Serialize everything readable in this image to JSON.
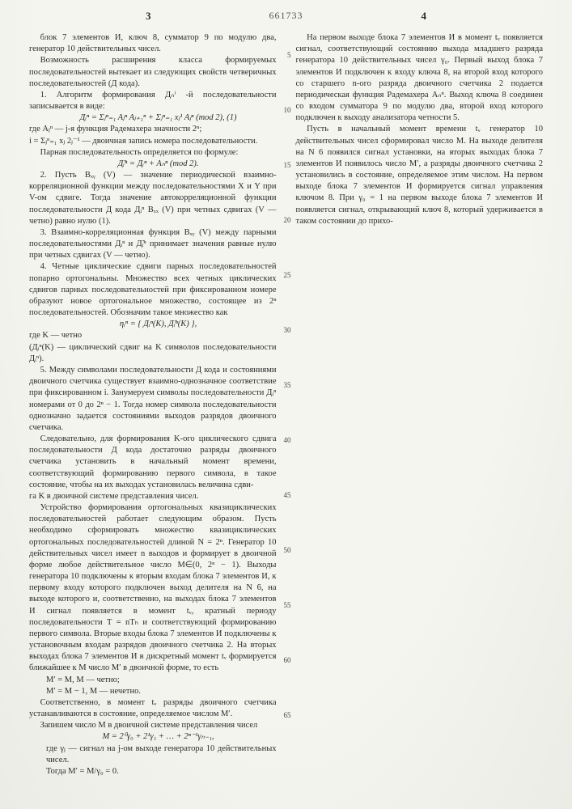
{
  "header": {
    "left_page": "3",
    "docnum": "661733",
    "right_page": "4"
  },
  "ruler_values": [
    "5",
    "10",
    "15",
    "20",
    "25",
    "30",
    "35",
    "40",
    "45",
    "50",
    "55",
    "60",
    "65"
  ],
  "left": {
    "p1": "блок 7 элементов И, ключ 8, сумматор 9 по модулю два, генератор 10 действительных чисел.",
    "p2": "Возможность расширения класса формируемых последовательностей вытекает из следующих свойств четверичных последовательностей (Д кода).",
    "p3": "1. Алгоритм формирования Дₙⁱ -й последовательности записывается в виде:",
    "formula1": "Дᵢⁿ = Σⱼⁿ₌₁ Aⱼⁿ Aⱼ₊₁ⁿ + Σⱼⁿ₌₁ xⱼ¹ Aⱼⁿ   (mod 2),   (1)",
    "def1a": "где Aⱼⁿ — j-я функция Радемахера значности 2ⁿ;",
    "def1b": "i = Σⱼⁿ₌₁ xⱼ 2ⱼ⁻¹ — двоичная запись номера последовательности.",
    "p4": "Парная последовательность определяется по формуле:",
    "formula2": "Д̃ᵢⁿ = Дᵢⁿ + Aₙⁿ   (mod 2).",
    "p5": "2. Пусть Bₓᵧ (V) — значение периодической взаимно-корреляционной функции между последовательностями X и Y при V-ом сдвиге. Тогда значение автокорреляционной функции последовательности Д кода Дᵢⁿ Bₓₓ (V) при четных сдвигах (V — четно) равно нулю (1).",
    "p6": "3. Взаимно-корреляционная функция Bₓᵧ (V) между парными последовательностями Дᵢⁿ и Д̃ᵢⁿ принимает значения равные нулю при четных сдвигах (V — четно).",
    "p7": "4. Четные циклические сдвиги парных последовательностей попарно ортогональны. Множество всех четных циклических сдвигов парных последовательностей при фиксированном номере образуют новое ортогональное множество, состоящее из 2ⁿ последовательностей. Обозначим такое множество как",
    "formula3": "ηᵢⁿ = { Дᵢⁿ(K), Д̃ᵢⁿ(K) },",
    "def3a": "где K — четно",
    "def3b": "(Дᵢⁿ(K) — циклический сдвиг на K символов последовательности Дᵢⁿ).",
    "p8": "5. Между символами последовательности Д кода и состояниями двоичного счетчика существует взаимно-однозначное соответствие при фиксированном i. Занумеруем символы последовательности Дᵢⁿ номерами от 0 до 2ⁿ − 1. Тогда номер символа последовательности однозначно задается состояниями выходов разрядов двоичного счетчика.",
    "p9": "Следовательно, для формирования K-ого циклического сдвига последовательности Д кода достаточно разряды двоичного счетчика установить в начальный момент времени, соответствующий формированию первого символа, в такое состояние, чтобы на их выходах установилась величина сдви-"
  },
  "right": {
    "p1": "га K в двоичной системе представления чисел.",
    "p2": "Устройство формирования ортогональных квазициклических последовательностей работает следующим образом. Пусть необходимо сформировать множество квазициклических ортогональных последовательностей длиной N = 2ⁿ. Генератор 10 действительных чисел имеет n выходов и формирует в двоичной форме любое действительное число M∈(0, 2ⁿ − 1). Выходы генератора 10 подключены к вторым входам блока 7 элементов И, к первому входу которого подключен выход делителя на N 6, на выходе которого и, соответственно, на выходах блока 7 элементов И сигнал появляется в момент tᵥ, кратный периоду последовательности T = nTₕ и соответствующий формированию первого символа. Вторые входы блока 7 элементов И подключены к установочным входам разрядов двоичного счетчика 2. На вторых выходах блока 7 элементов И в дискретный момент tᵥ формируется ближайшее к M число M′ в двоичной форме, то есть",
    "p3a": "M′ = M,        M — четно;",
    "p3b": "M′ = M − 1,    M — нечетно.",
    "p4": "Соответственно, в момент tᵥ разряды двоичного счетчика устанавливаются в состояние, определяемое числом M′.",
    "p5": "Запишем число M в двоичной системе представления чисел",
    "formula4": "M = 2⁰γ₀ + 2¹γ₁ + … + 2ⁿ⁻¹γₙ₋₁,",
    "def4": "где γⱼ — сигнал на j-ом выходе генератора 10 действительных чисел.",
    "p5b": "Тогда M′ = M/γ₀ = 0.",
    "p6": "На первом выходе блока 7 элементов И в момент tᵥ появляется сигнал, соответствующий состоянию выхода младшего разряда генератора 10 действительных чисел γ₀. Первый выход блока 7 элементов И подключен к входу ключа 8, на второй вход которого со старшего n-ого разряда двоичного счетчика 2 подается периодическая функция Радемахера Aₙⁿ. Выход ключа 8 соединен со входом сумматора 9 по модулю два, второй вход которого подключен к выходу анализатора четности 5.",
    "p7": "Пусть в начальный момент времени tᵥ генератор 10 действительных чисел сформировал число M. На выходе делителя на N 6 появился сигнал установки, на вторых выходах блока 7 элементов И появилось число M′, а разряды двоичного счетчика 2 установились в состояние, определяемое этим числом. На первом выходе блока 7 элементов И формируется сигнал управления ключом 8. При γ₀ = 1 на первом выходе блока 7 элементов И появляется сигнал, открывающий ключ 8, который удерживается в таком состоянии до прихо-"
  }
}
